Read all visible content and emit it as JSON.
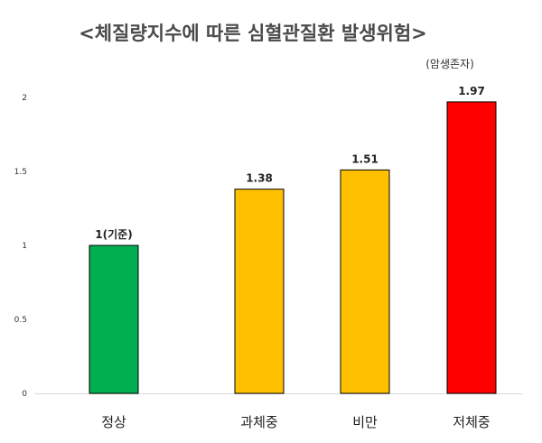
{
  "chart_data": {
    "type": "bar",
    "title": "<체질량지수에 따른 심혈관질환 발생위험>",
    "subtitle": "(암생존자)",
    "categories": [
      "정상",
      "과체중",
      "비만",
      "저체중"
    ],
    "values": [
      1,
      1.38,
      1.51,
      1.97
    ],
    "data_labels": [
      "1(기준)",
      "1.38",
      "1.51",
      "1.97"
    ],
    "colors": [
      "#00b050",
      "#ffc000",
      "#ffc000",
      "#ff0000"
    ],
    "yticks": [
      "0",
      "0.5",
      "1",
      "1.5",
      "2"
    ],
    "ylim": [
      0,
      2
    ],
    "xlabel": "",
    "ylabel": "",
    "grid": false,
    "legend": "none"
  }
}
